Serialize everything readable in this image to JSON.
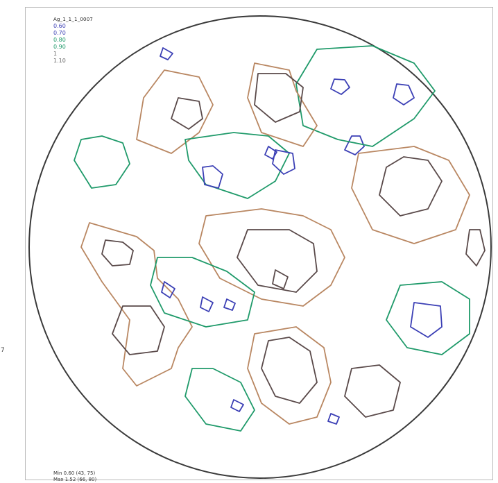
{
  "title": "Ag_1_1_1_0007",
  "legend": [
    {
      "label": "0.60",
      "color": "#3b3fb5"
    },
    {
      "label": "0.70",
      "color": "#3b3fb5"
    },
    {
      "label": "0.80",
      "color": "#1f9a6a"
    },
    {
      "label": "0.90",
      "color": "#1f9a6a"
    },
    {
      "label": "1",
      "color": "#666666"
    },
    {
      "label": "1.10",
      "color": "#666666"
    }
  ],
  "stats": {
    "min": "Min 0.60 (43, 75)",
    "max": "Max 1.52 (66, 80)"
  },
  "edge_label": "7",
  "chart_data": {
    "type": "contour",
    "title": "Ag_1_1_1_0007",
    "levels": [
      0.6,
      0.7,
      0.8,
      0.9,
      1.0,
      1.1
    ],
    "level_colors": [
      "#3b3fb5",
      "#3b3fb5",
      "#1f9a6a",
      "#1f9a6a",
      "#b98762",
      "#5a4a4a"
    ],
    "min": {
      "value": 0.6,
      "x": 43,
      "y": 75
    },
    "max": {
      "value": 1.52,
      "x": 66,
      "y": 80
    },
    "projection": "pole-figure",
    "colors": {
      "low": "#3b3fb5",
      "mid": "#1f9a6a",
      "high": "#b98762",
      "peak": "#5a4a4a",
      "outline": "#2f2f2f"
    }
  }
}
